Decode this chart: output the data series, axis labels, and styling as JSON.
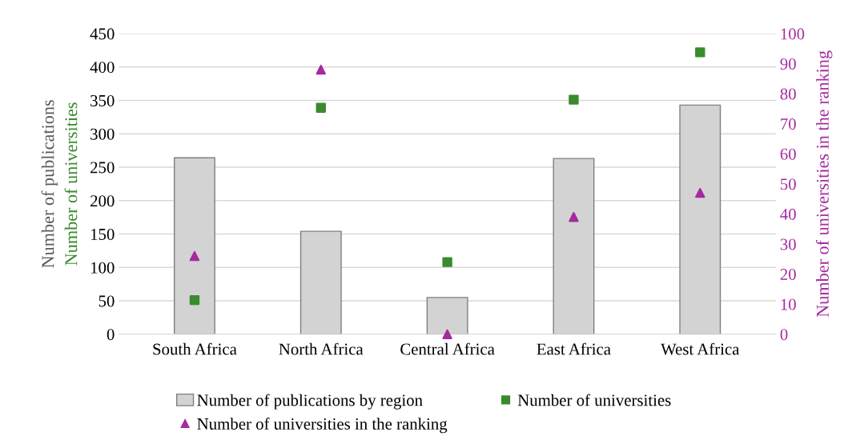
{
  "chart_data": {
    "type": "bar",
    "categories": [
      "South Africa",
      "North Africa",
      "Central Africa",
      "East Africa",
      "West Africa"
    ],
    "series": [
      {
        "name": "Number of publications by region",
        "color": "#d3d3d3",
        "values": [
          264,
          154,
          55,
          263,
          343
        ]
      },
      {
        "name": "Number of universities",
        "type": "scatter",
        "marker": "square",
        "color": "#3a8a2e",
        "values": [
          51,
          339,
          108,
          351,
          422
        ]
      },
      {
        "name": "Number of universities in the ranking",
        "type": "scatter",
        "marker": "triangle",
        "axis": "y2",
        "color": "#a52a9f",
        "values": [
          26,
          88,
          0,
          39,
          47
        ]
      }
    ],
    "ylabel": "Number of publications",
    "annotations": [
      "Number of universities"
    ],
    "y2label": "Number of universities in the ranking",
    "ylim": [
      0,
      450
    ],
    "yticks": [
      0,
      50,
      100,
      150,
      200,
      250,
      300,
      350,
      400,
      450
    ],
    "y2lim": [
      0,
      100
    ],
    "y2ticks": [
      0,
      10,
      20,
      30,
      40,
      50,
      60,
      70,
      80,
      90,
      100
    ],
    "grid": "y",
    "legend": "bottom"
  }
}
